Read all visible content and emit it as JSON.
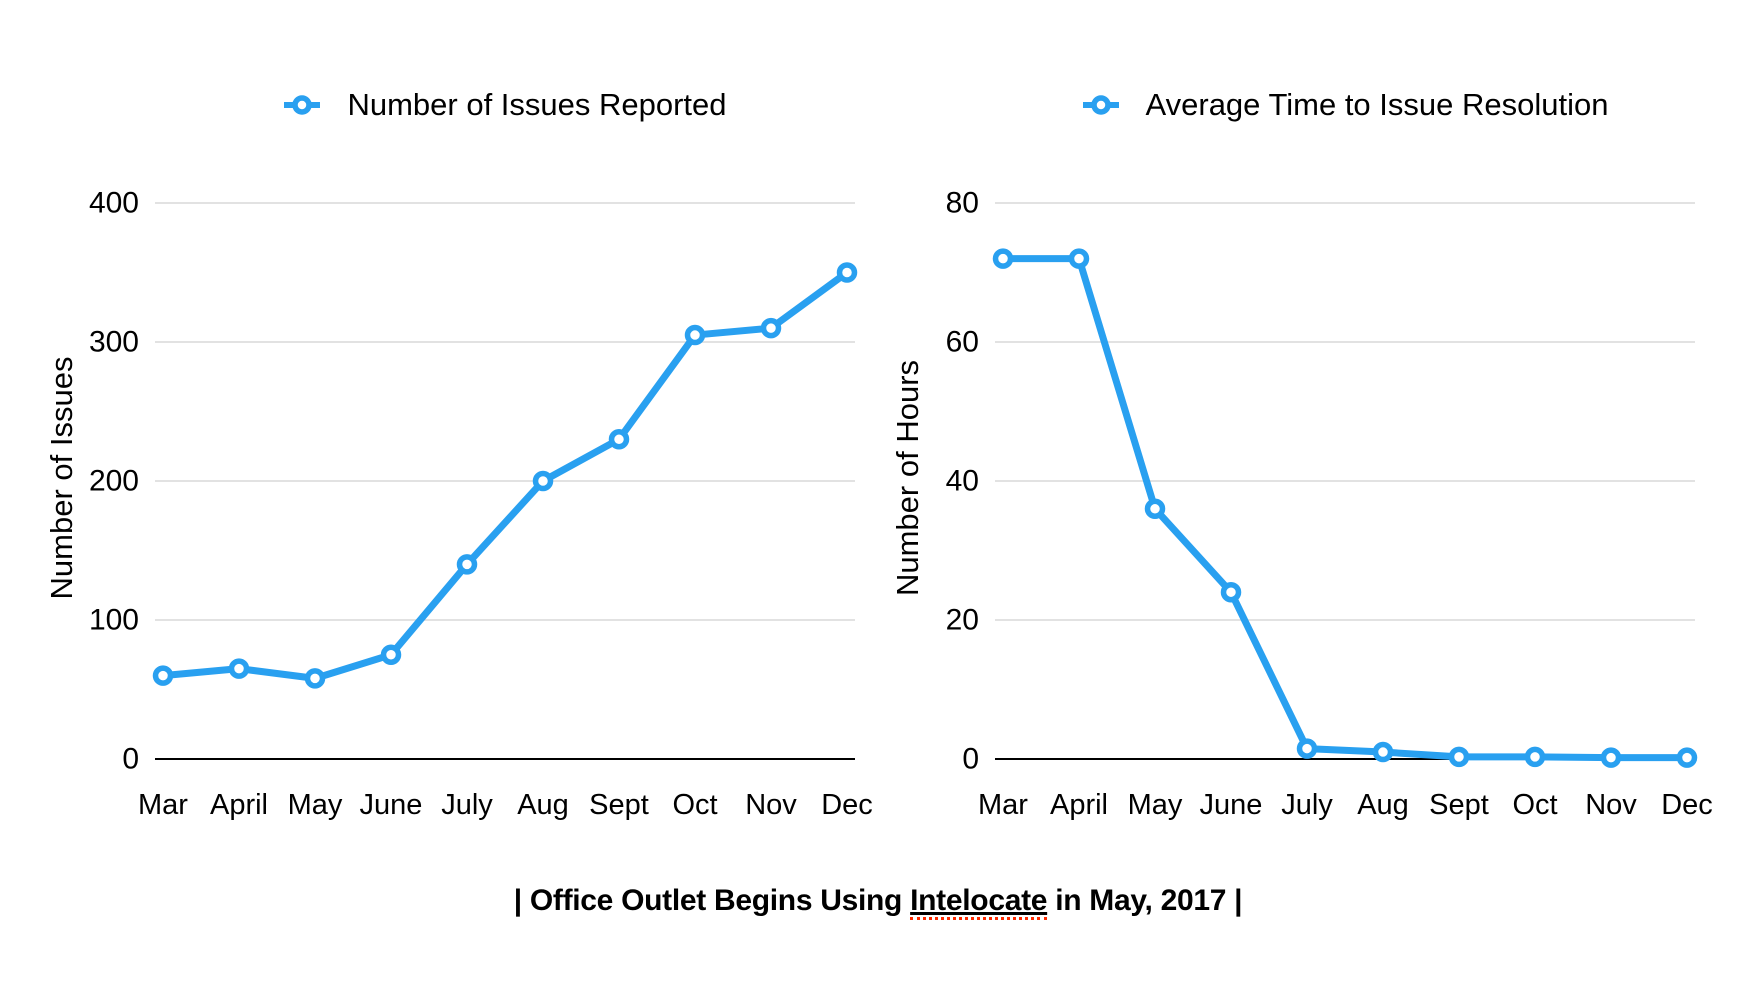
{
  "colors": {
    "line": "#29A0F0",
    "grid": "#D8D8D8",
    "baseline": "#000000",
    "text": "#000000",
    "spellcheck": "#FF2A00"
  },
  "caption": {
    "prefix": "| Office Outlet Begins Using ",
    "highlight": "Intelocate",
    "suffix": " in May, 2017 |"
  },
  "chart_data": [
    {
      "type": "line",
      "title": "Number of Issues Reported",
      "ylabel": "Number of Issues",
      "xlabel": "",
      "categories": [
        "Mar",
        "April",
        "May",
        "June",
        "July",
        "Aug",
        "Sept",
        "Oct",
        "Nov",
        "Dec"
      ],
      "values": [
        60,
        65,
        58,
        75,
        140,
        200,
        230,
        305,
        310,
        350
      ],
      "yticks": [
        0,
        100,
        200,
        300,
        400
      ],
      "ylim": [
        0,
        400
      ],
      "grid": true,
      "legend_position": "top",
      "marker": "circle-open"
    },
    {
      "type": "line",
      "title": "Average Time to Issue Resolution",
      "ylabel": "Number of Hours",
      "xlabel": "",
      "categories": [
        "Mar",
        "April",
        "May",
        "June",
        "July",
        "Aug",
        "Sept",
        "Oct",
        "Nov",
        "Dec"
      ],
      "values": [
        72,
        72,
        36,
        24,
        1.5,
        1,
        0.3,
        0.3,
        0.2,
        0.2
      ],
      "yticks": [
        0,
        20,
        40,
        60,
        80
      ],
      "ylim": [
        0,
        80
      ],
      "grid": true,
      "legend_position": "top",
      "marker": "circle-open"
    }
  ]
}
